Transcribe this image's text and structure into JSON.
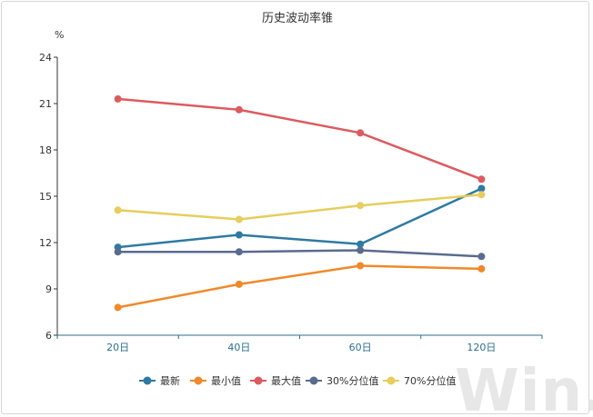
{
  "watermark_text": "Win.d",
  "chart_data": {
    "type": "line",
    "title": "历史波动率锥",
    "ylabel": "%",
    "ylim": [
      6,
      24
    ],
    "yticks": [
      6,
      9,
      12,
      15,
      18,
      21,
      24
    ],
    "categories": [
      "20日",
      "40日",
      "60日",
      "120日"
    ],
    "legend_position": "bottom",
    "grid": false,
    "series": [
      {
        "name": "最新",
        "color": "#2e7aa3",
        "values": [
          11.7,
          12.5,
          11.9,
          15.5
        ]
      },
      {
        "name": "最小值",
        "color": "#f0892a",
        "values": [
          7.8,
          9.3,
          10.5,
          10.3
        ]
      },
      {
        "name": "最大值",
        "color": "#dc5b5f",
        "values": [
          21.3,
          20.6,
          19.1,
          16.1
        ]
      },
      {
        "name": "30%分位值",
        "color": "#5a6b8f",
        "values": [
          11.4,
          11.4,
          11.5,
          11.1
        ]
      },
      {
        "name": "70%分位值",
        "color": "#e7cd5c",
        "values": [
          14.1,
          13.5,
          14.4,
          15.1
        ]
      }
    ]
  }
}
